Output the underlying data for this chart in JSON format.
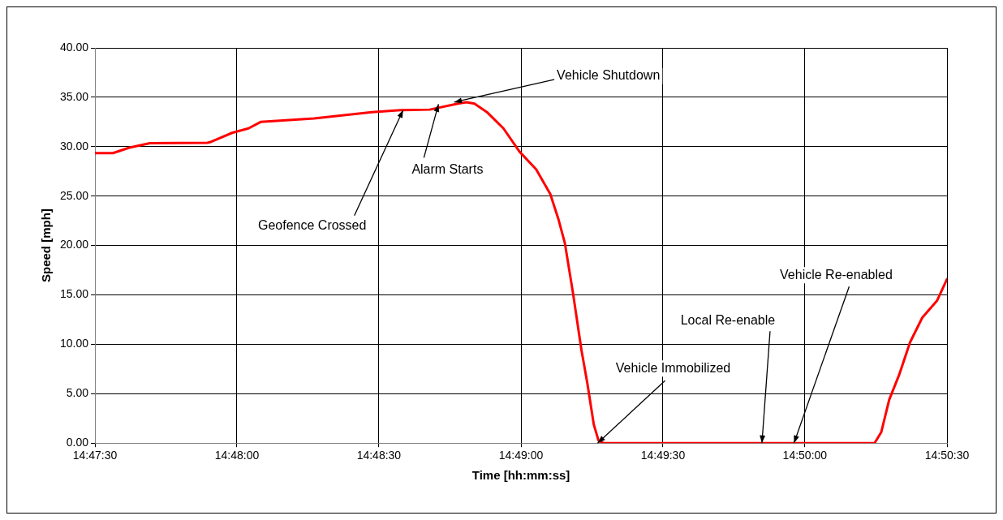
{
  "chart_data": {
    "type": "line",
    "xlabel": "Time [hh:mm:ss]",
    "ylabel": "Speed [mph]",
    "xlim": [
      14.79167,
      14.84167
    ],
    "xticks": [
      {
        "value": 14.79167,
        "label": "14:47:30"
      },
      {
        "value": 14.8,
        "label": "14:48:00"
      },
      {
        "value": 14.80833,
        "label": "14:48:30"
      },
      {
        "value": 14.81667,
        "label": "14:49:00"
      },
      {
        "value": 14.825,
        "label": "14:49:30"
      },
      {
        "value": 14.83333,
        "label": "14:50:00"
      },
      {
        "value": 14.84167,
        "label": "14:50:30"
      }
    ],
    "ylim": [
      0,
      40
    ],
    "yticks": [
      {
        "value": 0,
        "label": "0.00"
      },
      {
        "value": 5,
        "label": "5.00"
      },
      {
        "value": 10,
        "label": "10.00"
      },
      {
        "value": 15,
        "label": "15.00"
      },
      {
        "value": 20,
        "label": "20.00"
      },
      {
        "value": 25,
        "label": "25.00"
      },
      {
        "value": 30,
        "label": "30.00"
      },
      {
        "value": 35,
        "label": "35.00"
      },
      {
        "value": 40,
        "label": "40.00"
      }
    ],
    "grid": true,
    "legend": false,
    "marker": "none",
    "line_style": "solid",
    "series": [
      {
        "color": "#ff0000",
        "x": [
          14.79167,
          14.79272,
          14.79369,
          14.79489,
          14.79828,
          14.7985,
          14.79972,
          14.80068,
          14.80139,
          14.80453,
          14.80792,
          14.80961,
          14.81131,
          14.81297,
          14.81347,
          14.81394,
          14.81467,
          14.81564,
          14.81658,
          14.81756,
          14.81839,
          14.81886,
          14.81925,
          14.81972,
          14.82022,
          14.82056,
          14.82094,
          14.82122,
          14.8215,
          14.83742,
          14.83781,
          14.83828,
          14.83886,
          14.8395,
          14.84022,
          14.84108,
          14.84167
        ],
        "values": [
          29.35,
          29.35,
          29.9,
          30.35,
          30.4,
          30.5,
          31.4,
          31.85,
          32.5,
          32.85,
          33.5,
          33.7,
          33.75,
          34.35,
          34.5,
          34.35,
          33.5,
          31.85,
          29.5,
          27.7,
          25.2,
          22.7,
          20.2,
          15.2,
          9.4,
          6.1,
          1.9,
          0.25,
          0,
          0,
          1.1,
          4.4,
          6.9,
          10.2,
          12.7,
          14.4,
          16.6
        ]
      }
    ],
    "annotations": [
      {
        "text": "Geofence Crossed",
        "x": 14.80975,
        "y": 33.7
      },
      {
        "text": "Alarm Starts",
        "x": 14.81183,
        "y": 34.3
      },
      {
        "text": "Vehicle Shutdown",
        "x": 14.81275,
        "y": 34.5
      },
      {
        "text": "Vehicle Immobilized",
        "x": 14.82117,
        "y": 0
      },
      {
        "text": "Local Re-enable",
        "x": 14.83081,
        "y": 0
      },
      {
        "text": "Vehicle Re-enabled",
        "x": 14.83269,
        "y": 0
      }
    ]
  }
}
